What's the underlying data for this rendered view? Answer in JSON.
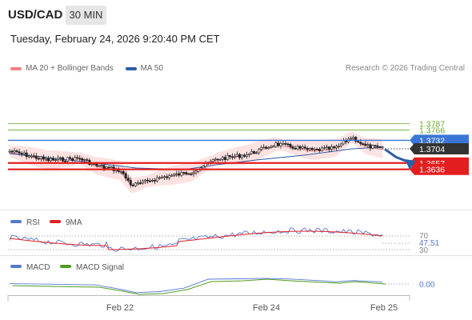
{
  "header": {
    "pair": "USD/CAD",
    "timeframe": "30 MIN",
    "datetime": "Tuesday, February 24, 2026 9:20:40 PM CET"
  },
  "legend": {
    "bollinger_label": "MA 20 + Bollinger Bands",
    "bollinger_color": "#f08080",
    "ma50_label": "MA 50",
    "ma50_color": "#2d5ea8"
  },
  "credit": "Research © 2026 Trading Central",
  "chart_data": {
    "type": "candlestick",
    "x_ticks": [
      "Feb 22",
      "Feb 24",
      "Feb 25"
    ],
    "price_ylim": [
      1.362,
      1.3795
    ],
    "current_price": "1.3704",
    "levels": [
      {
        "label": "1.3787",
        "value": 1.3787,
        "style": "green-line",
        "color": "#6aa832"
      },
      {
        "label": "1.3766",
        "value": 1.3766,
        "style": "green-line",
        "color": "#6aa832"
      },
      {
        "label": "1.3732",
        "value": 1.3732,
        "style": "resistance",
        "color": "#3a76d6"
      },
      {
        "label": "1.3704",
        "value": 1.3704,
        "style": "current",
        "color": "#333333"
      },
      {
        "label": "1.3657",
        "value": 1.3657,
        "style": "support",
        "color": "#e31e1e"
      },
      {
        "label": "1.3636",
        "value": 1.3636,
        "style": "support",
        "color": "#e31e1e"
      }
    ],
    "projection": {
      "from": 1.3703,
      "to": 1.3638
    },
    "rsi": {
      "label": "RSI",
      "ma_label": "9MA",
      "rsi_color": "#5577d6",
      "ma_color": "#e31e1e",
      "levels": [
        "70",
        "30"
      ],
      "current": "47.51"
    },
    "macd": {
      "label": "MACD",
      "signal_label": "MACD Signal",
      "macd_color": "#5577d6",
      "signal_color": "#4f9d1d",
      "current": "0.00"
    }
  }
}
